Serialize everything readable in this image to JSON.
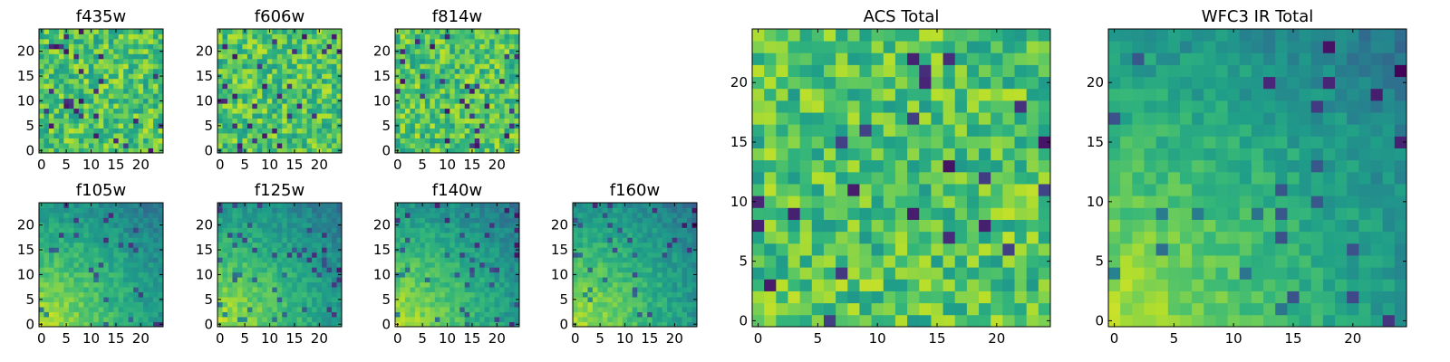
{
  "chart_data": [
    {
      "type": "heatmap",
      "title": "f435w",
      "xlim": [
        0,
        24
      ],
      "ylim": [
        0,
        24
      ],
      "xticks": [
        0,
        5,
        10,
        15,
        20
      ],
      "yticks": [
        0,
        5,
        10,
        15,
        20
      ],
      "colormap": "viridis",
      "pattern": "noise",
      "seed": 11
    },
    {
      "type": "heatmap",
      "title": "f606w",
      "xlim": [
        0,
        24
      ],
      "ylim": [
        0,
        24
      ],
      "xticks": [
        0,
        5,
        10,
        15,
        20
      ],
      "yticks": [
        0,
        5,
        10,
        15,
        20
      ],
      "colormap": "viridis",
      "pattern": "noise",
      "seed": 23
    },
    {
      "type": "heatmap",
      "title": "f814w",
      "xlim": [
        0,
        24
      ],
      "ylim": [
        0,
        24
      ],
      "xticks": [
        0,
        5,
        10,
        15,
        20
      ],
      "yticks": [
        0,
        5,
        10,
        15,
        20
      ],
      "colormap": "viridis",
      "pattern": "noise",
      "seed": 37
    },
    {
      "type": "heatmap",
      "title": "f105w",
      "xlim": [
        0,
        24
      ],
      "ylim": [
        0,
        24
      ],
      "xticks": [
        0,
        5,
        10,
        15,
        20
      ],
      "yticks": [
        0,
        5,
        10,
        15,
        20
      ],
      "colormap": "viridis",
      "pattern": "gradient",
      "seed": 41
    },
    {
      "type": "heatmap",
      "title": "f125w",
      "xlim": [
        0,
        24
      ],
      "ylim": [
        0,
        24
      ],
      "xticks": [
        0,
        5,
        10,
        15,
        20
      ],
      "yticks": [
        0,
        5,
        10,
        15,
        20
      ],
      "colormap": "viridis",
      "pattern": "gradient",
      "seed": 53
    },
    {
      "type": "heatmap",
      "title": "f140w",
      "xlim": [
        0,
        24
      ],
      "ylim": [
        0,
        24
      ],
      "xticks": [
        0,
        5,
        10,
        15,
        20
      ],
      "yticks": [
        0,
        5,
        10,
        15,
        20
      ],
      "colormap": "viridis",
      "pattern": "gradient",
      "seed": 67
    },
    {
      "type": "heatmap",
      "title": "f160w",
      "xlim": [
        0,
        24
      ],
      "ylim": [
        0,
        24
      ],
      "xticks": [
        0,
        5,
        10,
        15,
        20
      ],
      "yticks": [
        0,
        5,
        10,
        15,
        20
      ],
      "colormap": "viridis",
      "pattern": "gradient",
      "seed": 79
    },
    {
      "type": "heatmap",
      "title": "ACS Total",
      "xlim": [
        0,
        24
      ],
      "ylim": [
        0,
        24
      ],
      "xticks": [
        0,
        5,
        10,
        15,
        20
      ],
      "yticks": [
        0,
        5,
        10,
        15,
        20
      ],
      "colormap": "viridis",
      "pattern": "noise",
      "seed": 97
    },
    {
      "type": "heatmap",
      "title": "WFC3 IR Total",
      "xlim": [
        0,
        24
      ],
      "ylim": [
        0,
        24
      ],
      "xticks": [
        0,
        5,
        10,
        15,
        20
      ],
      "yticks": [
        0,
        5,
        10,
        15,
        20
      ],
      "colormap": "viridis",
      "pattern": "gradient",
      "seed": 113
    }
  ]
}
